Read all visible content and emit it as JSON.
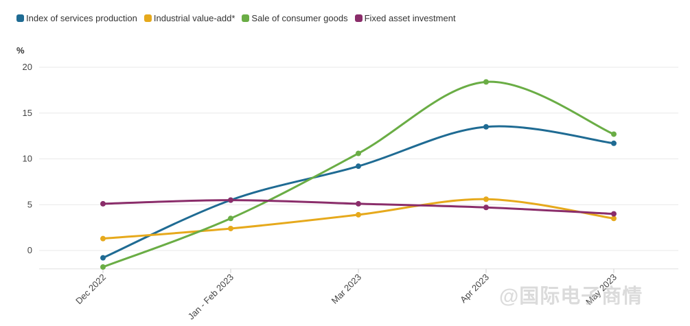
{
  "chart_data": {
    "type": "line",
    "title": "",
    "xlabel": "",
    "ylabel": "%",
    "ylim": [
      -2,
      20
    ],
    "yticks": [
      0,
      5,
      10,
      15,
      20
    ],
    "categories": [
      "Dec 2022",
      "Jan - Feb 2023",
      "Mar 2023",
      "Apr 2023",
      "May 2023"
    ],
    "legend_position": "top-left",
    "series": [
      {
        "name": "Index of services production",
        "color": "#1f6b93",
        "values": [
          -0.8,
          5.5,
          9.2,
          13.5,
          11.7
        ]
      },
      {
        "name": "Industrial value-add*",
        "color": "#e6a91c",
        "values": [
          1.3,
          2.4,
          3.9,
          5.6,
          3.5
        ]
      },
      {
        "name": "Sale of consumer goods",
        "color": "#6aad45",
        "values": [
          -1.8,
          3.5,
          10.6,
          18.4,
          12.7
        ]
      },
      {
        "name": "Fixed asset investment",
        "color": "#8a2d6a",
        "values": [
          5.1,
          5.5,
          5.1,
          4.7,
          4.0
        ]
      }
    ]
  },
  "watermark": "@国际电子商情"
}
